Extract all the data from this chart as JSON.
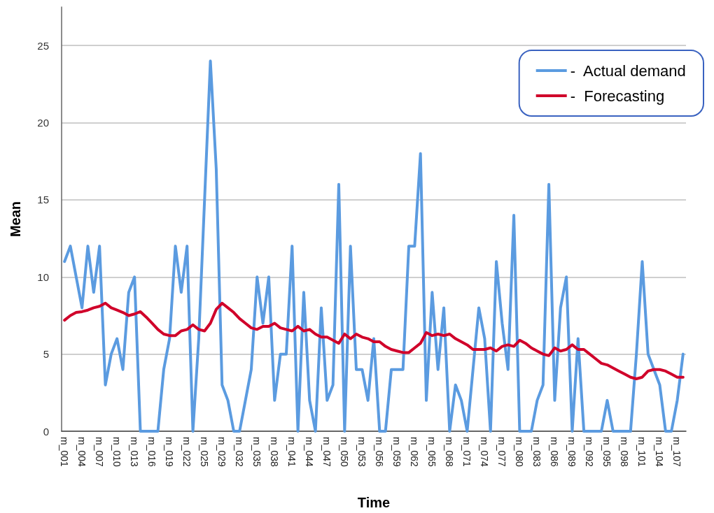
{
  "chart_data": {
    "type": "line",
    "xlabel": "Time",
    "ylabel": "Mean",
    "categories": [
      "m_001",
      null,
      null,
      "m_004",
      null,
      null,
      "m_007",
      null,
      null,
      "m_010",
      null,
      null,
      "m_013",
      null,
      null,
      "m_016",
      null,
      null,
      "m_019",
      null,
      null,
      "m_022",
      null,
      null,
      "m_025",
      null,
      null,
      "m_029",
      null,
      null,
      "m_032",
      null,
      null,
      "m_035",
      null,
      null,
      "m_038",
      null,
      null,
      "m_041",
      null,
      null,
      "m_044",
      null,
      null,
      "m_047",
      null,
      null,
      "m_050",
      null,
      null,
      "m_053",
      null,
      null,
      "m_056",
      null,
      null,
      "m_059",
      null,
      null,
      "m_062",
      null,
      null,
      "m_065",
      null,
      null,
      "m_068",
      null,
      null,
      "m_071",
      null,
      null,
      "m_074",
      null,
      null,
      "m_077",
      null,
      null,
      "m_080",
      null,
      null,
      "m_083",
      null,
      null,
      "m_086",
      null,
      null,
      "m_089",
      null,
      null,
      "m_092",
      null,
      null,
      "m_095",
      null,
      null,
      "m_098",
      null,
      null,
      "m_101",
      null,
      null,
      "m_104",
      null,
      null,
      "m_107",
      null
    ],
    "series": [
      {
        "name": "-  Actual demand",
        "color": "#5b9be0",
        "values": [
          11,
          12,
          10,
          8,
          12,
          9,
          12,
          3,
          5,
          6,
          4,
          9,
          10,
          0,
          0,
          0,
          0,
          4,
          6,
          12,
          9,
          12,
          0,
          6,
          15,
          24,
          17,
          3,
          2,
          0,
          0,
          2,
          4,
          10,
          7,
          10,
          2,
          5,
          5,
          12,
          0,
          9,
          2,
          0,
          8,
          2,
          3,
          16,
          0,
          12,
          4,
          4,
          2,
          6,
          0,
          0,
          4,
          4,
          4,
          12,
          12,
          18,
          2,
          9,
          4,
          8,
          0,
          3,
          2,
          0,
          4,
          8,
          6,
          0,
          11,
          7,
          4,
          14,
          0,
          0,
          0,
          2,
          3,
          16,
          2,
          8,
          10,
          0,
          6,
          0,
          0,
          0,
          0,
          2,
          0,
          0,
          0,
          0,
          5,
          11,
          5,
          4,
          3,
          0,
          0,
          2,
          5
        ]
      },
      {
        "name": "-  Forecasting",
        "color": "#d0002a",
        "values": [
          7.2,
          7.5,
          7.7,
          7.75,
          7.85,
          8.0,
          8.1,
          8.3,
          8.0,
          7.85,
          7.7,
          7.5,
          7.6,
          7.75,
          7.4,
          7.0,
          6.6,
          6.3,
          6.2,
          6.2,
          6.5,
          6.6,
          6.9,
          6.6,
          6.5,
          7.0,
          7.9,
          8.3,
          8.0,
          7.7,
          7.3,
          7.0,
          6.7,
          6.6,
          6.8,
          6.8,
          7.0,
          6.7,
          6.6,
          6.5,
          6.8,
          6.5,
          6.6,
          6.3,
          6.1,
          6.1,
          5.9,
          5.7,
          6.3,
          6.0,
          6.3,
          6.1,
          6.0,
          5.8,
          5.8,
          5.5,
          5.3,
          5.2,
          5.1,
          5.1,
          5.4,
          5.7,
          6.4,
          6.2,
          6.3,
          6.2,
          6.3,
          6.0,
          5.8,
          5.6,
          5.3,
          5.3,
          5.3,
          5.4,
          5.2,
          5.5,
          5.6,
          5.5,
          5.9,
          5.7,
          5.4,
          5.2,
          5.0,
          4.9,
          5.4,
          5.2,
          5.3,
          5.6,
          5.3,
          5.3,
          5.0,
          4.7,
          4.4,
          4.3,
          4.1,
          3.9,
          3.7,
          3.5,
          3.4,
          3.5,
          3.9,
          4.0,
          4.0,
          3.9,
          3.7,
          3.5,
          3.5
        ]
      }
    ],
    "ylim": [
      0,
      27.5
    ],
    "yticks": [
      0,
      5,
      10,
      15,
      20,
      25
    ],
    "grid": "y",
    "legend": "top right",
    "marker": "none",
    "line_style": "solid"
  }
}
